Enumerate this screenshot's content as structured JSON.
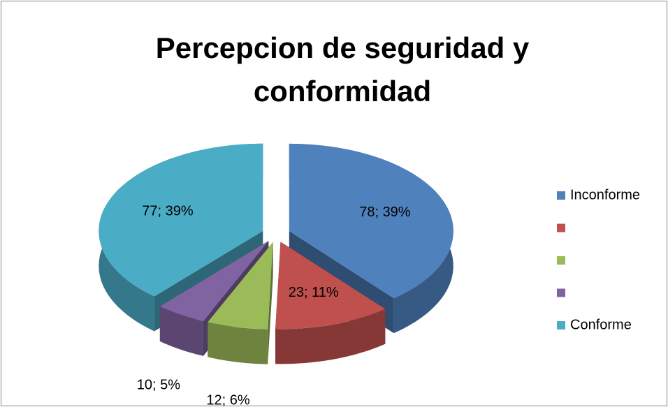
{
  "chart_data": {
    "type": "pie",
    "title": "Percepcion de seguridad y conformidad",
    "categories": [
      "Inconforme",
      null,
      null,
      null,
      "Conforme"
    ],
    "values": [
      78,
      23,
      12,
      10,
      77
    ],
    "value_labels": [
      "78; 39%",
      "23; 11%",
      "12; 6%",
      "10; 5%",
      "77; 39%"
    ],
    "colors": [
      "#4f81bd",
      "#c0504d",
      "#9bbb59",
      "#8064a2",
      "#4bacc6"
    ],
    "legend": "right",
    "exploded": true,
    "three_d": true
  }
}
